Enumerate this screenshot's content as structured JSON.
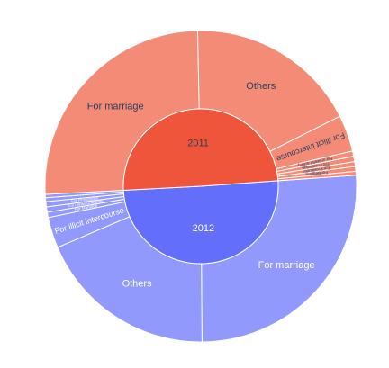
{
  "chart_data": {
    "type": "sunburst",
    "inner_ring": [
      {
        "label": "2012",
        "value": 50.3,
        "color": "#636efa"
      },
      {
        "label": "2011",
        "value": 49.7,
        "color": "#ef553b"
      }
    ],
    "outer_ring": [
      {
        "parent": "2012",
        "label": "For marriage",
        "value": 26.0,
        "color": "#9199fc"
      },
      {
        "parent": "2012",
        "label": "Others",
        "value": 18.7,
        "color": "#9199fc"
      },
      {
        "parent": "2012",
        "label": "For illicit intercourse",
        "value": 3.2,
        "color": "#9199fc"
      },
      {
        "parent": "2012",
        "label": "For Marriage",
        "value": 0.55,
        "color": "#9199fc"
      },
      {
        "parent": "2012",
        "label": "For unlawful activity",
        "value": 0.55,
        "color": "#9199fc"
      },
      {
        "parent": "2012",
        "label": "For Prostitution",
        "value": 0.55,
        "color": "#9199fc"
      },
      {
        "parent": "2012",
        "label": "",
        "value": 0.4,
        "color": "#9199fc"
      },
      {
        "parent": "2012",
        "label": "",
        "value": 0.35,
        "color": "#9199fc"
      },
      {
        "parent": "2011",
        "label": "For marriage",
        "value": 25.5,
        "color": "#f48b77"
      },
      {
        "parent": "2011",
        "label": "Others",
        "value": 17.9,
        "color": "#f48b77"
      },
      {
        "parent": "2011",
        "label": "For illicit intercourse",
        "value": 3.8,
        "color": "#f48b77"
      },
      {
        "parent": "2011",
        "label": "For unlawful activity",
        "value": 0.55,
        "color": "#f48b77"
      },
      {
        "parent": "2011",
        "label": "For Prostitution",
        "value": 0.55,
        "color": "#f48b77"
      },
      {
        "parent": "2011",
        "label": "For Prostitution",
        "value": 0.5,
        "color": "#f48b77"
      },
      {
        "parent": "2011",
        "label": "For Begging",
        "value": 0.5,
        "color": "#f48b77"
      },
      {
        "parent": "2011",
        "label": "",
        "value": 0.4,
        "color": "#f48b77"
      }
    ]
  }
}
